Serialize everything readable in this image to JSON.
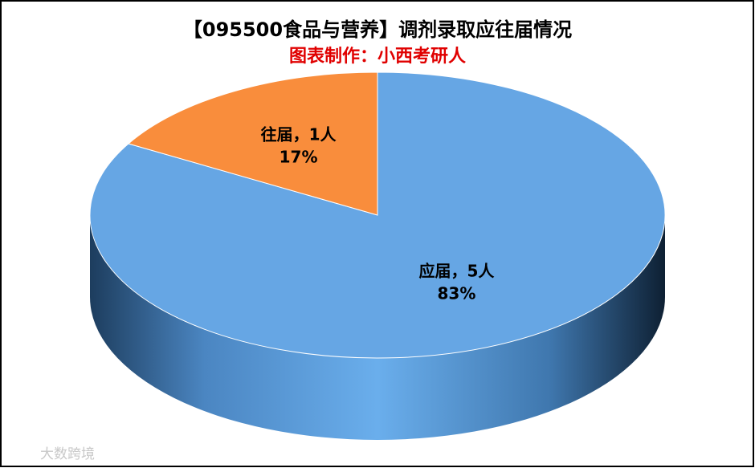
{
  "chart_data": {
    "type": "pie3d",
    "title": "【095500食品与营养】调剂录取应往届情况",
    "subtitle": "图表制作：小西考研人",
    "categories": [
      "应届",
      "往届"
    ],
    "values": [
      5,
      1
    ],
    "value_labels": [
      "应届，5人",
      "往届，1人"
    ],
    "percentages": [
      83,
      17
    ],
    "percentage_labels": [
      "83%",
      "17%"
    ],
    "colors": [
      "#66a6e4",
      "#f98d3c"
    ],
    "watermark": "大数跨境"
  }
}
